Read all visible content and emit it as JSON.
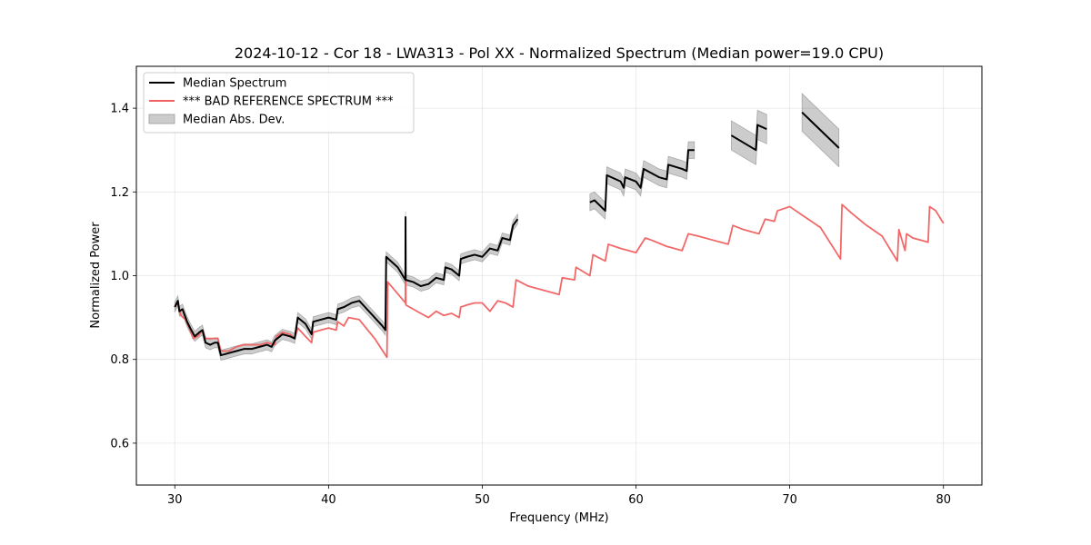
{
  "chart_data": {
    "type": "line",
    "title": "2024-10-12 - Cor 18 - LWA313 - Pol XX - Normalized Spectrum (Median power=19.0 CPU)",
    "xlabel": "Frequency (MHz)",
    "ylabel": "Normalized Power",
    "xlim": [
      27.5,
      82.5
    ],
    "ylim": [
      0.5,
      1.5
    ],
    "xticks": [
      30,
      40,
      50,
      60,
      70,
      80
    ],
    "yticks": [
      0.6,
      0.8,
      1.0,
      1.2,
      1.4
    ],
    "xtick_labels": [
      "30",
      "40",
      "50",
      "60",
      "70",
      "80"
    ],
    "ytick_labels": [
      "0.6",
      "0.8",
      "1.0",
      "1.2",
      "1.4"
    ],
    "grid": true,
    "legend_position": "top-left",
    "legend": [
      {
        "label": "Median Spectrum",
        "color": "#000000",
        "kind": "line"
      },
      {
        "label": "*** BAD REFERENCE SPECTRUM ***",
        "color": "#f06060",
        "kind": "line"
      },
      {
        "label": "Median Abs. Dev.",
        "color": "#cccccc",
        "kind": "patch"
      }
    ],
    "series": [
      {
        "name": "Median Spectrum",
        "color": "#000000",
        "band_halfwidth": [
          0.012,
          0.02,
          0.035,
          0.045
        ],
        "segments": [
          [
            [
              30.0,
              0.925
            ],
            [
              30.2,
              0.94
            ],
            [
              30.3,
              0.915
            ],
            [
              30.5,
              0.92
            ],
            [
              30.8,
              0.89
            ],
            [
              31.0,
              0.875
            ],
            [
              31.3,
              0.855
            ],
            [
              31.6,
              0.865
            ],
            [
              31.8,
              0.87
            ],
            [
              32.0,
              0.84
            ],
            [
              32.3,
              0.835
            ],
            [
              32.6,
              0.84
            ],
            [
              32.8,
              0.84
            ],
            [
              33.0,
              0.81
            ],
            [
              33.5,
              0.815
            ],
            [
              34.0,
              0.82
            ],
            [
              34.5,
              0.825
            ],
            [
              35.0,
              0.825
            ],
            [
              35.5,
              0.83
            ],
            [
              36.0,
              0.835
            ],
            [
              36.3,
              0.83
            ],
            [
              36.5,
              0.845
            ],
            [
              37.0,
              0.86
            ],
            [
              37.5,
              0.855
            ],
            [
              37.8,
              0.85
            ],
            [
              38.0,
              0.9
            ],
            [
              38.5,
              0.885
            ],
            [
              38.9,
              0.86
            ],
            [
              39.0,
              0.89
            ],
            [
              39.5,
              0.895
            ],
            [
              40.0,
              0.9
            ],
            [
              40.5,
              0.895
            ],
            [
              40.6,
              0.92
            ],
            [
              41.0,
              0.925
            ],
            [
              41.5,
              0.935
            ],
            [
              42.0,
              0.94
            ],
            [
              42.5,
              0.92
            ],
            [
              43.0,
              0.9
            ],
            [
              43.5,
              0.88
            ],
            [
              43.7,
              0.87
            ],
            [
              43.75,
              1.045
            ],
            [
              44.5,
              1.02
            ],
            [
              45.0,
              0.99
            ],
            [
              45.01,
              1.14
            ],
            [
              45.02,
              0.99
            ],
            [
              45.5,
              0.985
            ],
            [
              46.0,
              0.975
            ],
            [
              46.5,
              0.98
            ],
            [
              47.0,
              0.995
            ],
            [
              47.5,
              0.99
            ],
            [
              47.6,
              1.02
            ],
            [
              48.0,
              1.015
            ],
            [
              48.5,
              1.0
            ],
            [
              48.6,
              1.04
            ],
            [
              49.0,
              1.045
            ],
            [
              49.5,
              1.05
            ],
            [
              50.0,
              1.045
            ],
            [
              50.5,
              1.065
            ],
            [
              51.0,
              1.06
            ],
            [
              51.3,
              1.09
            ],
            [
              51.8,
              1.085
            ],
            [
              52.0,
              1.12
            ],
            [
              52.3,
              1.135
            ]
          ],
          [
            [
              57.0,
              1.175
            ],
            [
              57.3,
              1.18
            ],
            [
              58.0,
              1.155
            ],
            [
              58.1,
              1.24
            ],
            [
              59.0,
              1.225
            ],
            [
              59.2,
              1.21
            ],
            [
              59.3,
              1.235
            ],
            [
              60.0,
              1.225
            ],
            [
              60.3,
              1.21
            ],
            [
              60.5,
              1.255
            ],
            [
              61.5,
              1.235
            ],
            [
              62.0,
              1.23
            ],
            [
              62.1,
              1.265
            ],
            [
              63.0,
              1.255
            ],
            [
              63.3,
              1.25
            ],
            [
              63.4,
              1.3
            ],
            [
              63.8,
              1.3
            ]
          ],
          [
            [
              66.2,
              1.335
            ],
            [
              67.8,
              1.3
            ],
            [
              67.9,
              1.36
            ],
            [
              68.5,
              1.35
            ]
          ],
          [
            [
              70.8,
              1.39
            ],
            [
              73.2,
              1.305
            ]
          ]
        ]
      },
      {
        "name": "*** BAD REFERENCE SPECTRUM ***",
        "color": "#f06060",
        "segments": [
          [
            [
              30.0,
              0.925
            ],
            [
              30.2,
              0.935
            ],
            [
              30.4,
              0.905
            ],
            [
              30.7,
              0.895
            ],
            [
              31.0,
              0.87
            ],
            [
              31.2,
              0.85
            ],
            [
              31.5,
              0.855
            ],
            [
              31.8,
              0.87
            ],
            [
              32.0,
              0.85
            ],
            [
              32.5,
              0.85
            ],
            [
              32.8,
              0.85
            ],
            [
              33.0,
              0.82
            ],
            [
              33.5,
              0.82
            ],
            [
              34.0,
              0.83
            ],
            [
              34.5,
              0.835
            ],
            [
              35.0,
              0.835
            ],
            [
              35.5,
              0.835
            ],
            [
              36.0,
              0.84
            ],
            [
              36.5,
              0.835
            ],
            [
              36.6,
              0.855
            ],
            [
              37.0,
              0.865
            ],
            [
              37.5,
              0.86
            ],
            [
              37.8,
              0.85
            ],
            [
              38.0,
              0.875
            ],
            [
              38.5,
              0.855
            ],
            [
              38.9,
              0.84
            ],
            [
              39.0,
              0.865
            ],
            [
              39.5,
              0.87
            ],
            [
              40.0,
              0.875
            ],
            [
              40.5,
              0.87
            ],
            [
              40.6,
              0.89
            ],
            [
              41.0,
              0.88
            ],
            [
              41.3,
              0.9
            ],
            [
              42.0,
              0.895
            ],
            [
              43.0,
              0.85
            ],
            [
              43.8,
              0.805
            ],
            [
              43.85,
              0.985
            ],
            [
              45.0,
              0.935
            ],
            [
              45.01,
              1.095
            ],
            [
              45.03,
              0.93
            ],
            [
              46.0,
              0.91
            ],
            [
              46.5,
              0.9
            ],
            [
              47.0,
              0.915
            ],
            [
              47.5,
              0.905
            ],
            [
              48.0,
              0.91
            ],
            [
              48.5,
              0.9
            ],
            [
              48.6,
              0.925
            ],
            [
              49.0,
              0.93
            ],
            [
              49.5,
              0.935
            ],
            [
              50.0,
              0.935
            ],
            [
              50.5,
              0.915
            ],
            [
              51.0,
              0.94
            ],
            [
              51.5,
              0.935
            ],
            [
              52.0,
              0.925
            ],
            [
              52.2,
              0.99
            ],
            [
              53.0,
              0.975
            ],
            [
              54.0,
              0.965
            ],
            [
              55.0,
              0.955
            ],
            [
              55.2,
              0.995
            ],
            [
              56.0,
              0.99
            ],
            [
              56.1,
              1.02
            ],
            [
              57.0,
              1.0
            ],
            [
              57.2,
              1.05
            ],
            [
              58.0,
              1.035
            ],
            [
              58.2,
              1.075
            ],
            [
              59.0,
              1.065
            ],
            [
              60.0,
              1.055
            ],
            [
              60.6,
              1.09
            ],
            [
              61.0,
              1.085
            ],
            [
              62.0,
              1.07
            ],
            [
              63.0,
              1.06
            ],
            [
              63.4,
              1.1
            ],
            [
              64.0,
              1.095
            ],
            [
              65.0,
              1.085
            ],
            [
              66.0,
              1.075
            ],
            [
              66.3,
              1.12
            ],
            [
              67.0,
              1.11
            ],
            [
              68.0,
              1.1
            ],
            [
              68.4,
              1.135
            ],
            [
              69.0,
              1.13
            ],
            [
              69.2,
              1.155
            ],
            [
              70.0,
              1.165
            ],
            [
              71.0,
              1.14
            ],
            [
              72.0,
              1.115
            ],
            [
              73.3,
              1.04
            ],
            [
              73.4,
              1.17
            ],
            [
              74.0,
              1.15
            ],
            [
              75.0,
              1.12
            ],
            [
              76.0,
              1.095
            ],
            [
              77.0,
              1.035
            ],
            [
              77.1,
              1.11
            ],
            [
              77.5,
              1.06
            ],
            [
              77.6,
              1.1
            ],
            [
              78.0,
              1.09
            ],
            [
              79.0,
              1.08
            ],
            [
              79.1,
              1.165
            ],
            [
              79.5,
              1.155
            ],
            [
              80.0,
              1.125
            ]
          ]
        ]
      }
    ]
  }
}
